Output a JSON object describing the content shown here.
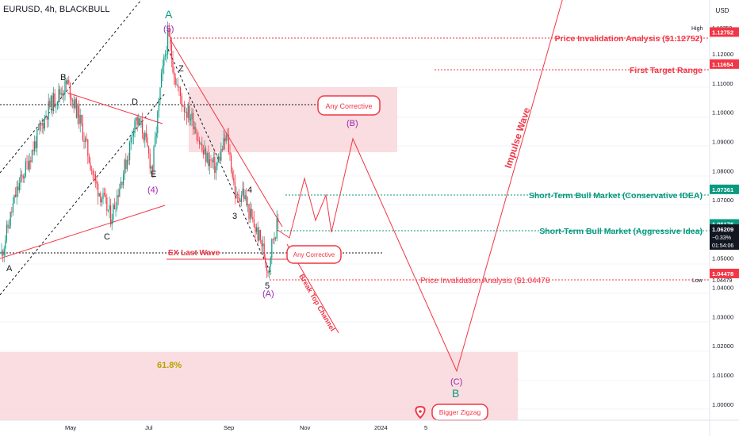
{
  "header": {
    "title": "EURUSD, 4h, BLACKBULL",
    "currency_button": "USD"
  },
  "chart_data": {
    "type": "candlestick",
    "price_range": [
      0.9945,
      1.1385
    ],
    "price_ticks": [
      "1.12000",
      "1.11000",
      "1.10000",
      "1.09000",
      "1.08000",
      "1.07000",
      "1.05000",
      "1.04000",
      "1.03000",
      "1.02000",
      "1.01000",
      "1.00000"
    ],
    "time_ticks": [
      "May",
      "Jul",
      "Sep",
      "Nov",
      "2024",
      "5"
    ],
    "high_label": "High",
    "high_value": "1.12752",
    "low_label": "Low",
    "low_value": "1.04479",
    "price_flags": [
      {
        "name": "price-flag-invalidation-high",
        "text": "1.12752",
        "price": 1.12752,
        "color": "#f23645"
      },
      {
        "name": "price-flag-first-target",
        "text": "1.11654",
        "price": 1.11654,
        "color": "#f23645"
      },
      {
        "name": "price-flag-conservative",
        "text": "1.07361",
        "price": 1.07361,
        "color": "#089981"
      },
      {
        "name": "price-flag-level",
        "text": "1.06176",
        "price": 1.06176,
        "color": "#089981"
      },
      {
        "name": "price-flag-invalidation-low",
        "text": "1.04478",
        "price": 1.04478,
        "color": "#f23645"
      }
    ],
    "current": {
      "price": "1.06209",
      "change": "−0.33%",
      "countdown": "01:54:06"
    },
    "annotations": {
      "invalidation_high": "Price Invalidation Analysis ($1.12752)",
      "first_target": "First Target Range",
      "conservative": "Short-Term Bull Market (Conservative IDEA)",
      "aggressive": "Short-Term Bull Market (Aggressive Idea)",
      "invalidation_low": "Price Invalidation Analysis ($1.04478",
      "ex_last_wave": "EX Last Wave",
      "impulse_wave": "Impulse Wave",
      "break_top_channel": "Break Top Channel",
      "fib": "61.8%",
      "any_corrective_upper": "Any Corrective",
      "any_corrective_lower": "Any Corrective",
      "bigger_zigzag": "Bigger Zigzag"
    },
    "wave_labels": {
      "A_left": "A",
      "B": "B",
      "C": "C",
      "D": "D",
      "E": "E",
      "four_purple": "(4)",
      "A_top": "A",
      "five_purple": "(5)",
      "Z": "Z",
      "four": "4",
      "three": "3",
      "five": "5",
      "A_purple": "(A)",
      "B_purple": "(B)",
      "C_purple": "(C)",
      "B_green": "B"
    },
    "colors": {
      "up": "#089981",
      "down": "#f23645",
      "bg": "#ffffff",
      "zone": "#f8d7db",
      "grid": "#f0f3fa"
    }
  }
}
